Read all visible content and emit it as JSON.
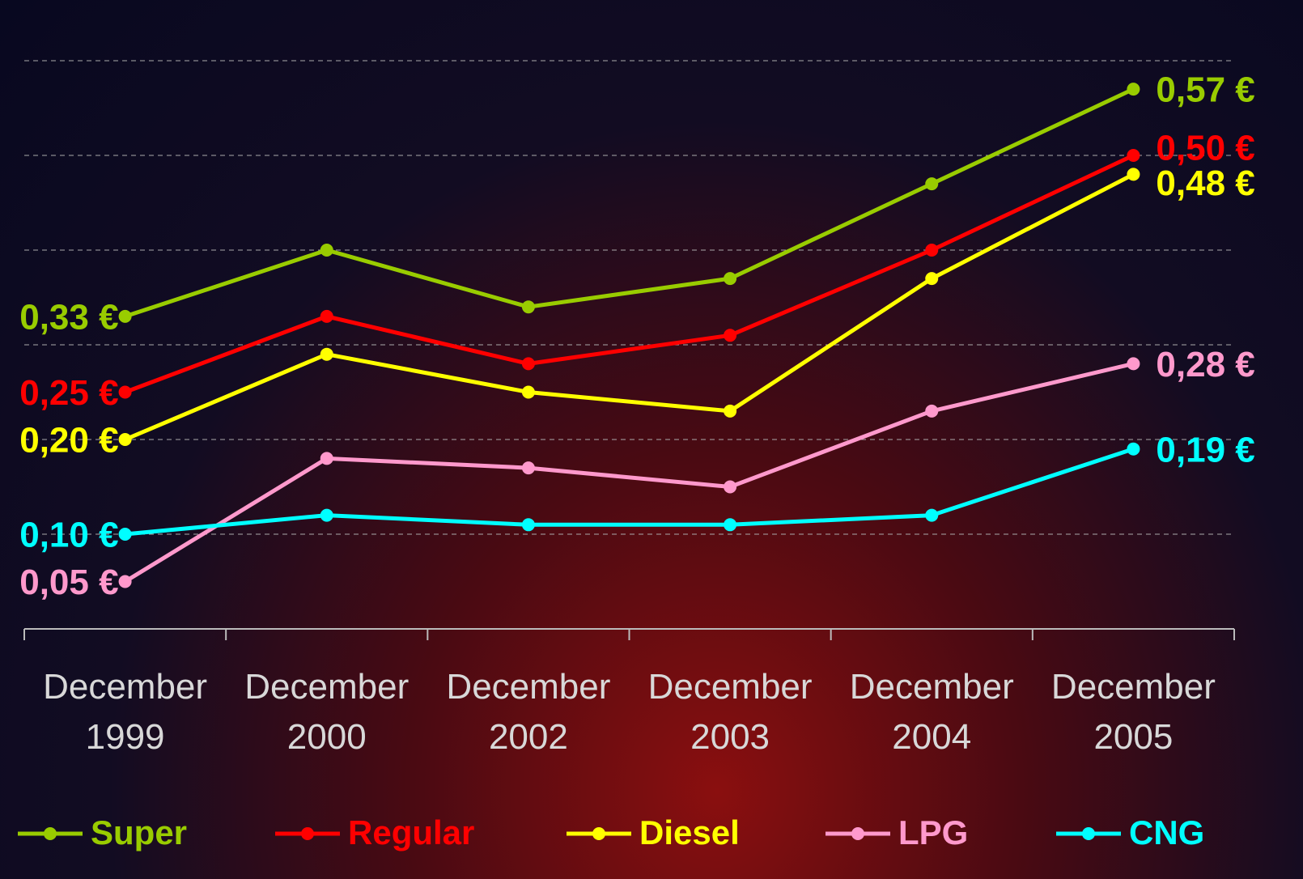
{
  "chart_data": {
    "type": "line",
    "categories": [
      "December 1999",
      "December 2000",
      "December 2002",
      "December 2003",
      "December 2004",
      "December 2005"
    ],
    "ylim": [
      0,
      0.65
    ],
    "yticks": [
      0.1,
      0.2,
      0.3,
      0.4,
      0.5,
      0.6
    ],
    "grid": true,
    "legend": "bottom",
    "series": [
      {
        "name": "Super",
        "color": "#99cc00",
        "values": [
          0.33,
          0.4,
          0.34,
          0.37,
          0.47,
          0.57
        ],
        "value_labels": [
          "0,33 €",
          null,
          null,
          null,
          null,
          "0,57 €"
        ]
      },
      {
        "name": "Regular",
        "color": "#ff0000",
        "values": [
          0.25,
          0.33,
          0.28,
          0.31,
          0.4,
          0.5
        ],
        "value_labels": [
          "0,25 €",
          null,
          null,
          null,
          null,
          "0,50 €"
        ]
      },
      {
        "name": "Diesel",
        "color": "#ffff00",
        "values": [
          0.2,
          0.29,
          0.25,
          0.23,
          0.37,
          0.48
        ],
        "value_labels": [
          "0,20 €",
          null,
          null,
          null,
          null,
          "0,48 €"
        ]
      },
      {
        "name": "LPG",
        "color": "#ff99cc",
        "values": [
          0.05,
          0.18,
          0.17,
          0.15,
          0.23,
          0.28
        ],
        "value_labels": [
          "0,05 €",
          null,
          null,
          null,
          null,
          "0,28 €"
        ]
      },
      {
        "name": "CNG",
        "color": "#00ffff",
        "values": [
          0.1,
          0.12,
          0.11,
          0.11,
          0.12,
          0.19
        ],
        "value_labels": [
          "0,10 €",
          null,
          null,
          null,
          null,
          "0,19 €"
        ]
      }
    ]
  }
}
